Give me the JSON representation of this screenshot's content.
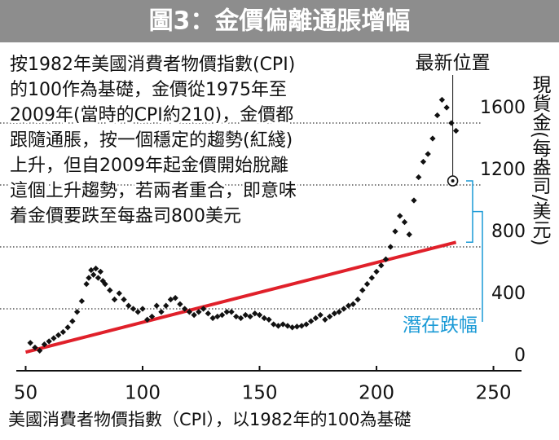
{
  "chart_data": {
    "type": "scatter",
    "title": "圖3：金價偏離通脹增幅",
    "note_lines": [
      "按1982年美國消費者物價指數(CPI)",
      "的100作為基礎，金價從1975年至",
      "2009年(當時的CPI約210)，金價都",
      "跟隨通脹，按一個穩定的趨勢(紅綫)",
      "上升，但自2009年起金價開始脫離",
      "這個上升趨勢，若兩者重合，即意味",
      "着金價要跌至每盎司800美元"
    ],
    "x_label": "美國消費者物價指數（CPI），以1982年的100為基礎",
    "y_label": "現貨金(每盎司/美元)",
    "xlim": [
      46,
      262
    ],
    "xticks": [
      50,
      100,
      150,
      200,
      250
    ],
    "ylim": [
      0,
      1900
    ],
    "yticks": [
      0,
      400,
      800,
      1200,
      1600
    ],
    "grid": true,
    "series": [
      {
        "color": "#111111",
        "x": [
          52,
          54,
          56,
          58,
          60,
          62,
          64,
          66,
          68,
          70,
          72,
          74,
          76,
          77,
          78,
          79,
          80,
          81,
          82,
          83,
          84,
          86,
          88,
          90,
          92,
          94,
          96,
          98,
          100,
          102,
          104,
          106,
          108,
          110,
          112,
          114,
          116,
          118,
          120,
          122,
          124,
          126,
          128,
          130,
          132,
          134,
          136,
          138,
          140,
          142,
          144,
          146,
          148,
          150,
          152,
          154,
          156,
          158,
          160,
          162,
          164,
          166,
          168,
          170,
          172,
          174,
          176,
          178,
          180,
          182,
          184,
          186,
          188,
          190,
          192,
          194,
          196,
          198,
          200,
          202,
          204,
          206,
          208,
          210,
          212,
          214,
          216,
          218,
          220,
          222,
          224,
          226,
          228,
          230,
          232,
          234
        ],
        "values": [
          180,
          150,
          130,
          170,
          190,
          210,
          230,
          250,
          280,
          320,
          380,
          450,
          560,
          600,
          650,
          620,
          660,
          600,
          640,
          580,
          560,
          520,
          460,
          500,
          460,
          420,
          400,
          380,
          400,
          330,
          350,
          420,
          380,
          420,
          460,
          470,
          430,
          400,
          380,
          360,
          380,
          400,
          370,
          340,
          350,
          360,
          380,
          380,
          350,
          340,
          360,
          350,
          370,
          360,
          340,
          330,
          300,
          290,
          300,
          290,
          280,
          285,
          290,
          300,
          320,
          340,
          360,
          330,
          350,
          370,
          380,
          400,
          420,
          430,
          460,
          520,
          560,
          600,
          640,
          680,
          720,
          800,
          900,
          1000,
          960,
          880,
          1100,
          1250,
          1350,
          1400,
          1500,
          1650,
          1750,
          1700,
          1600,
          1550
        ]
      }
    ],
    "trend": {
      "color": "#e0202a",
      "x": [
        50,
        234
      ],
      "values": [
        120,
        830
      ]
    },
    "latest": {
      "text": "最新位置",
      "x": 232.6,
      "y": 1226
    },
    "gap": {
      "text": "潛在跌幅",
      "color": "#1a9ad6"
    }
  }
}
